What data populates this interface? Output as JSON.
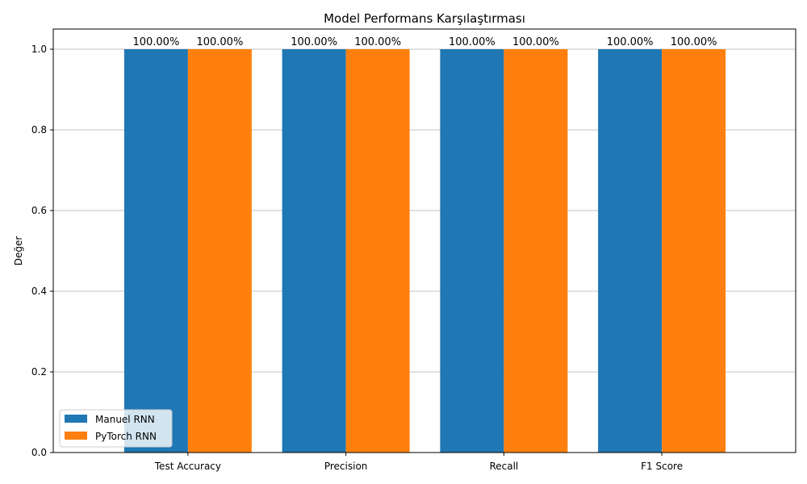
{
  "chart_data": {
    "type": "bar",
    "title": "Model Performans Karşılaştırması",
    "xlabel": "",
    "ylabel": "Değer",
    "categories": [
      "Test Accuracy",
      "Precision",
      "Recall",
      "F1 Score"
    ],
    "series": [
      {
        "name": "Manuel RNN",
        "values": [
          1.0,
          1.0,
          1.0,
          1.0
        ],
        "color": "#1f77b4",
        "labels": [
          "100.00%",
          "100.00%",
          "100.00%",
          "100.00%"
        ]
      },
      {
        "name": "PyTorch RNN",
        "values": [
          1.0,
          1.0,
          1.0,
          1.0
        ],
        "color": "#ff7f0e",
        "labels": [
          "100.00%",
          "100.00%",
          "100.00%",
          "100.00%"
        ]
      }
    ],
    "ylim": [
      0,
      1.05
    ],
    "yticks": [
      "0.0",
      "0.2",
      "0.4",
      "0.6",
      "0.8",
      "1.0"
    ],
    "grid": "y",
    "legend_position": "lower-left"
  }
}
